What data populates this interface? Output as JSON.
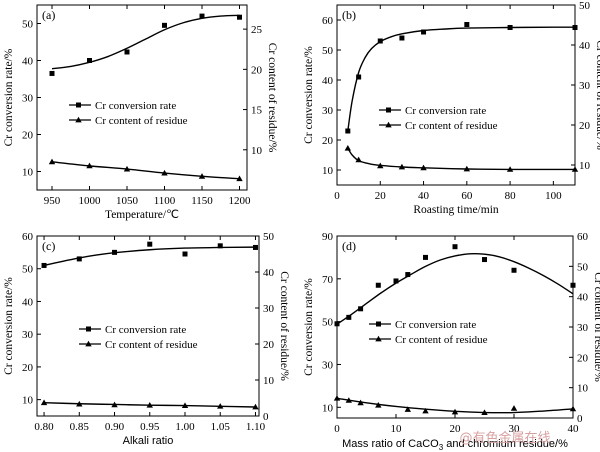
{
  "watermark": "@有色金属在线",
  "chart_data": [
    {
      "type": "scatter",
      "panel": "(a)",
      "xlabel": "Temperature/℃",
      "ylabel_left": "Cr conversion rate/%",
      "ylabel_right": "Cr content of residue/%",
      "xlim": [
        930,
        1210
      ],
      "ylim_left": [
        5,
        55
      ],
      "ylim_right": [
        5,
        28
      ],
      "xticks": [
        "950",
        "1000",
        "1050",
        "1100",
        "1150",
        "1200"
      ],
      "yticks_left": [
        "10",
        "20",
        "30",
        "40",
        "50"
      ],
      "yticks_right": [
        "10",
        "15",
        "20",
        "25"
      ],
      "legend": [
        "Cr conversion rate",
        "Cr content of residue"
      ],
      "legend_position": "right",
      "series": [
        {
          "name": "Cr conversion rate",
          "axis": "left",
          "marker": "square",
          "x": [
            950,
            1000,
            1050,
            1100,
            1150,
            1200
          ],
          "y": [
            36.5,
            40,
            42.3,
            49.5,
            52,
            51.7
          ],
          "fit_x": [
            950,
            975,
            1000,
            1025,
            1050,
            1075,
            1100,
            1125,
            1150,
            1175,
            1200
          ],
          "fit_y": [
            37.8,
            38.4,
            39.5,
            41.1,
            43.3,
            45.8,
            48.3,
            50.2,
            51.4,
            52.0,
            52.2
          ]
        },
        {
          "name": "Cr content of residue",
          "axis": "right",
          "marker": "triangle",
          "x": [
            950,
            1000,
            1050,
            1100,
            1150,
            1200
          ],
          "y": [
            8.5,
            8.0,
            7.6,
            7.1,
            6.7,
            6.4
          ],
          "fit_x": [
            950,
            1000,
            1050,
            1100,
            1150,
            1200
          ],
          "fit_y": [
            8.5,
            8.0,
            7.6,
            7.1,
            6.7,
            6.4
          ]
        }
      ]
    },
    {
      "type": "scatter",
      "panel": "(b)",
      "xlabel": "Roasting time/min",
      "ylabel_left": "Cr conversion rate/%",
      "ylabel_right": "Cr content of residue/%",
      "xlim": [
        0,
        110
      ],
      "ylim_left": [
        5,
        65
      ],
      "ylim_right": [
        5,
        50
      ],
      "xticks": [
        "0",
        "20",
        "40",
        "60",
        "80",
        "100"
      ],
      "yticks_left": [
        "10",
        "20",
        "30",
        "40",
        "50",
        "60"
      ],
      "yticks_right": [
        "10",
        "20",
        "30",
        "40",
        "50"
      ],
      "legend": [
        "Cr conversion rate",
        "Cr content of residue"
      ],
      "legend_position": "right",
      "series": [
        {
          "name": "Cr conversion rate",
          "axis": "left",
          "marker": "square",
          "x": [
            5,
            10,
            20,
            30,
            40,
            60,
            80,
            110
          ],
          "y": [
            23,
            41,
            53,
            54,
            56,
            58.5,
            57.5,
            57.5
          ],
          "fit_x": [
            5,
            7,
            10,
            13,
            16,
            20,
            25,
            30,
            40,
            50,
            60,
            80,
            100,
            110
          ],
          "fit_y": [
            23,
            33,
            42.5,
            47.5,
            50.5,
            52.8,
            54.4,
            55.4,
            56.5,
            57,
            57.3,
            57.5,
            57.6,
            57.6
          ]
        },
        {
          "name": "Cr content of residue",
          "axis": "right",
          "marker": "triangle",
          "x": [
            5,
            10,
            20,
            30,
            40,
            60,
            80,
            110
          ],
          "y": [
            14.2,
            11.3,
            9.8,
            9.5,
            9.3,
            9.0,
            8.9,
            8.9
          ],
          "fit_x": [
            5,
            7,
            10,
            15,
            20,
            30,
            40,
            60,
            80,
            110
          ],
          "fit_y": [
            14.2,
            12.5,
            11.1,
            10.3,
            9.9,
            9.5,
            9.3,
            9.0,
            8.9,
            8.9
          ]
        }
      ]
    },
    {
      "type": "scatter",
      "panel": "(c)",
      "xlabel": "Alkali ratio",
      "ylabel_left": "Cr conversion rate/%",
      "ylabel_right": "Cr content of residue/%",
      "xlim": [
        0.79,
        1.105
      ],
      "ylim_left": [
        5,
        60
      ],
      "ylim_right": [
        0,
        50
      ],
      "xticks": [
        "0.80",
        "0.85",
        "0.90",
        "0.95",
        "1.00",
        "1.05",
        "1.10"
      ],
      "yticks_left": [
        "10",
        "20",
        "30",
        "40",
        "50",
        "60"
      ],
      "yticks_right": [
        "0",
        "10",
        "20",
        "30",
        "40",
        "50"
      ],
      "legend": [
        "Cr conversion rate",
        "Cr content of residue"
      ],
      "legend_position": "right",
      "series": [
        {
          "name": "Cr conversion rate",
          "axis": "left",
          "marker": "square",
          "x": [
            0.8,
            0.85,
            0.9,
            0.95,
            1.0,
            1.05,
            1.1
          ],
          "y": [
            51,
            53,
            55,
            57.5,
            54.5,
            57,
            56.5
          ],
          "fit_x": [
            0.8,
            0.825,
            0.85,
            0.875,
            0.9,
            0.95,
            1.0,
            1.05,
            1.1
          ],
          "fit_y": [
            51,
            52.2,
            53.3,
            54.2,
            54.9,
            55.8,
            56.3,
            56.5,
            56.6
          ]
        },
        {
          "name": "Cr content of residue",
          "axis": "right",
          "marker": "triangle",
          "x": [
            0.8,
            0.85,
            0.9,
            0.95,
            1.0,
            1.05,
            1.1
          ],
          "y": [
            3.7,
            3.3,
            3.1,
            3.0,
            2.9,
            2.7,
            2.5
          ],
          "fit_x": [
            0.8,
            0.85,
            0.9,
            0.95,
            1.0,
            1.05,
            1.1
          ],
          "fit_y": [
            3.7,
            3.4,
            3.2,
            3.0,
            2.9,
            2.7,
            2.5
          ]
        }
      ]
    },
    {
      "type": "scatter",
      "panel": "(d)",
      "xlabel_prefix": "Mass ratio of CaCO",
      "xlabel_sub": "3",
      "xlabel_suffix": " and chromium residue/%",
      "ylabel_left": "Cr conversion rate/%",
      "ylabel_right": "Cr content of residue/%",
      "xlim": [
        0,
        40
      ],
      "ylim_left": [
        5,
        90
      ],
      "ylim_right": [
        0,
        60
      ],
      "xticks": [
        "0",
        "10",
        "20",
        "30",
        "40"
      ],
      "yticks_left": [
        "10",
        "30",
        "50",
        "70",
        "90"
      ],
      "yticks_right": [
        "0",
        "10",
        "20",
        "30",
        "40",
        "50",
        "60"
      ],
      "legend": [
        "Cr conversion rate",
        "Cr content of residue"
      ],
      "legend_position": "right",
      "series": [
        {
          "name": "Cr conversion rate",
          "axis": "left",
          "marker": "square",
          "x": [
            0,
            2,
            4,
            7,
            10,
            12,
            15,
            20,
            25,
            30,
            40
          ],
          "y": [
            49,
            52,
            56,
            67,
            69,
            72,
            80,
            85,
            79,
            74,
            67
          ],
          "fit_x": [
            0,
            2.5,
            5,
            7.5,
            10,
            12.5,
            15,
            17.5,
            20,
            22.5,
            25,
            27.5,
            30,
            32.5,
            35,
            37.5,
            40
          ],
          "fit_y": [
            48.8,
            53.5,
            58.5,
            63.5,
            68,
            72,
            75.8,
            78.8,
            80.7,
            81.7,
            81.5,
            80.3,
            78,
            75,
            71.5,
            67.5,
            63
          ]
        },
        {
          "name": "Cr content of residue",
          "axis": "right",
          "marker": "triangle",
          "x": [
            0,
            2,
            4,
            7,
            12,
            15,
            20,
            25,
            30,
            40
          ],
          "y": [
            6.5,
            5.8,
            5.0,
            4.2,
            2.8,
            2.3,
            2.0,
            1.8,
            3.2,
            3.0
          ],
          "fit_x": [
            0,
            5,
            10,
            15,
            20,
            25,
            30,
            35,
            40
          ],
          "fit_y": [
            6.5,
            5.0,
            3.8,
            2.9,
            2.2,
            1.8,
            1.8,
            2.3,
            3.0
          ]
        }
      ]
    }
  ]
}
